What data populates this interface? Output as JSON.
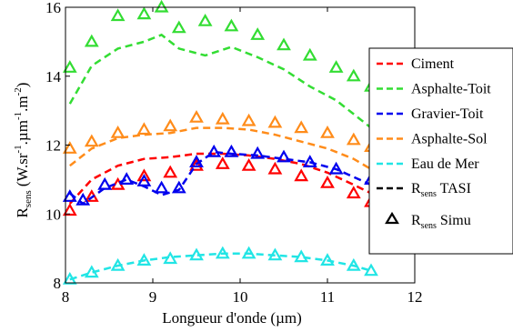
{
  "chart_data": {
    "type": "line",
    "xlabel": "Longueur d'onde (µm)",
    "ylabel_main": "R",
    "ylabel_sub": "sens",
    "ylabel_units": "(W.sr",
    "ylabel_units_sup1": "-1",
    "ylabel_units_mid": ".µm",
    "ylabel_units_sup2": "-1",
    "ylabel_units_mid2": ".m",
    "ylabel_units_sup3": "-2",
    "ylabel_units_end": ")",
    "xlim": [
      8,
      12
    ],
    "ylim": [
      8,
      16
    ],
    "xticks": [
      "8",
      "9",
      "10",
      "11",
      "12"
    ],
    "yticks": [
      "8",
      "10",
      "12",
      "14",
      "16"
    ],
    "grid": false,
    "legend_position": "right",
    "legend": {
      "tasi_main": "R",
      "tasi_sub": "sens",
      "tasi_suffix": " TASI",
      "simu_main": "R",
      "simu_sub": "sens",
      "simu_suffix": " Simu"
    },
    "series": [
      {
        "name": "Ciment",
        "color": "#ff0000",
        "x": [
          8.05,
          8.3,
          8.6,
          8.9,
          9.2,
          9.5,
          9.8,
          10.1,
          10.4,
          10.7,
          11.0,
          11.3,
          11.5
        ],
        "tasi": [
          10.3,
          11.0,
          11.4,
          11.6,
          11.65,
          11.75,
          11.75,
          11.7,
          11.6,
          11.45,
          11.2,
          10.85,
          10.6
        ],
        "simu": [
          10.1,
          10.5,
          10.85,
          11.1,
          11.2,
          11.4,
          11.45,
          11.4,
          11.3,
          11.1,
          10.9,
          10.6,
          10.35
        ]
      },
      {
        "name": "Asphalte-Toit",
        "color": "#33dd33",
        "x": [
          8.05,
          8.3,
          8.6,
          8.9,
          9.1,
          9.3,
          9.6,
          9.9,
          10.2,
          10.5,
          10.8,
          11.1,
          11.3,
          11.5
        ],
        "tasi": [
          13.2,
          14.3,
          14.8,
          15.0,
          15.2,
          14.8,
          14.6,
          14.85,
          14.55,
          14.2,
          13.7,
          13.3,
          12.9,
          12.5
        ],
        "simu": [
          14.25,
          15.0,
          15.75,
          15.8,
          16.0,
          15.4,
          15.6,
          15.45,
          15.2,
          14.9,
          14.6,
          14.25,
          14.0,
          13.7
        ]
      },
      {
        "name": "Gravier-Toit",
        "color": "#0000ee",
        "x": [
          8.05,
          8.2,
          8.45,
          8.7,
          8.9,
          9.1,
          9.3,
          9.5,
          9.7,
          9.9,
          10.2,
          10.5,
          10.8,
          11.1,
          11.5
        ],
        "tasi": [
          10.6,
          10.3,
          10.75,
          11.0,
          10.8,
          10.55,
          10.7,
          11.45,
          11.8,
          11.75,
          11.7,
          11.6,
          11.5,
          11.3,
          10.85
        ],
        "simu": [
          10.5,
          10.4,
          10.85,
          11.0,
          10.95,
          10.75,
          10.75,
          11.5,
          11.8,
          11.8,
          11.75,
          11.65,
          11.5,
          11.3,
          11.0
        ]
      },
      {
        "name": "Asphalte-Sol",
        "color": "#ff8c1a",
        "x": [
          8.05,
          8.3,
          8.6,
          8.9,
          9.2,
          9.5,
          9.8,
          10.1,
          10.4,
          10.7,
          11.0,
          11.3,
          11.5
        ],
        "tasi": [
          11.4,
          11.9,
          12.2,
          12.3,
          12.35,
          12.5,
          12.5,
          12.45,
          12.3,
          12.1,
          11.9,
          11.6,
          11.3
        ],
        "simu": [
          11.9,
          12.1,
          12.35,
          12.45,
          12.55,
          12.8,
          12.75,
          12.7,
          12.65,
          12.5,
          12.35,
          12.15,
          11.95
        ]
      },
      {
        "name": "Eau de Mer",
        "color": "#22e5e5",
        "x": [
          8.05,
          8.3,
          8.6,
          8.9,
          9.2,
          9.5,
          9.8,
          10.1,
          10.4,
          10.7,
          11.0,
          11.3,
          11.5
        ],
        "tasi": [
          8.1,
          8.3,
          8.5,
          8.65,
          8.75,
          8.8,
          8.85,
          8.85,
          8.8,
          8.75,
          8.65,
          8.5,
          8.35
        ],
        "simu": [
          8.1,
          8.3,
          8.5,
          8.65,
          8.7,
          8.8,
          8.85,
          8.85,
          8.8,
          8.75,
          8.65,
          8.5,
          8.35
        ]
      }
    ]
  }
}
